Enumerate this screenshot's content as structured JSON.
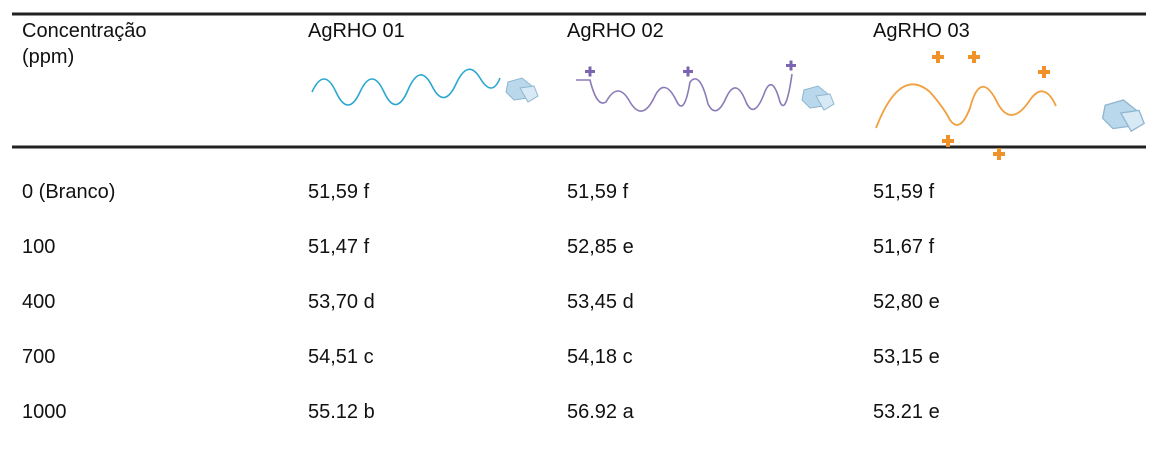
{
  "table": {
    "header": [
      "Concentração (ppm)",
      "AgRHO 01",
      "AgRHO 02",
      "AgRHO 03"
    ],
    "rows": [
      [
        "0 (Branco)",
        "51,59 f",
        "51,59 f",
        "51,59 f"
      ],
      [
        "100",
        "51,47 f",
        "52,85 e",
        "51,67 f"
      ],
      [
        "400",
        "53,70 d",
        "53,45 d",
        "52,80 e"
      ],
      [
        "700",
        "54,51 c",
        "54,18 c",
        "53,15 e"
      ],
      [
        "1000",
        "55.12 b",
        "56.92 a",
        "53.21 e"
      ]
    ]
  }
}
